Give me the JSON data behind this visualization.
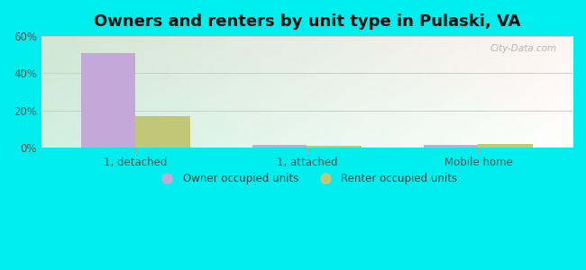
{
  "title": "Owners and renters by unit type in Pulaski, VA",
  "categories": [
    "1, detached",
    "1, attached",
    "Mobile home"
  ],
  "owner_values": [
    0.51,
    0.015,
    0.012
  ],
  "renter_values": [
    0.17,
    0.01,
    0.018
  ],
  "owner_color": "#c4a8d8",
  "renter_color": "#c0c878",
  "ylim_max": 0.6,
  "yticks": [
    0.0,
    0.2,
    0.4,
    0.6
  ],
  "ytick_labels": [
    "0%",
    "20%",
    "40%",
    "60%"
  ],
  "outer_bg": "#00eeee",
  "bar_width": 0.32,
  "legend_owner": "Owner occupied units",
  "legend_renter": "Renter occupied units",
  "watermark": "City-Data.com",
  "title_fontsize": 13,
  "tick_fontsize": 8.5
}
